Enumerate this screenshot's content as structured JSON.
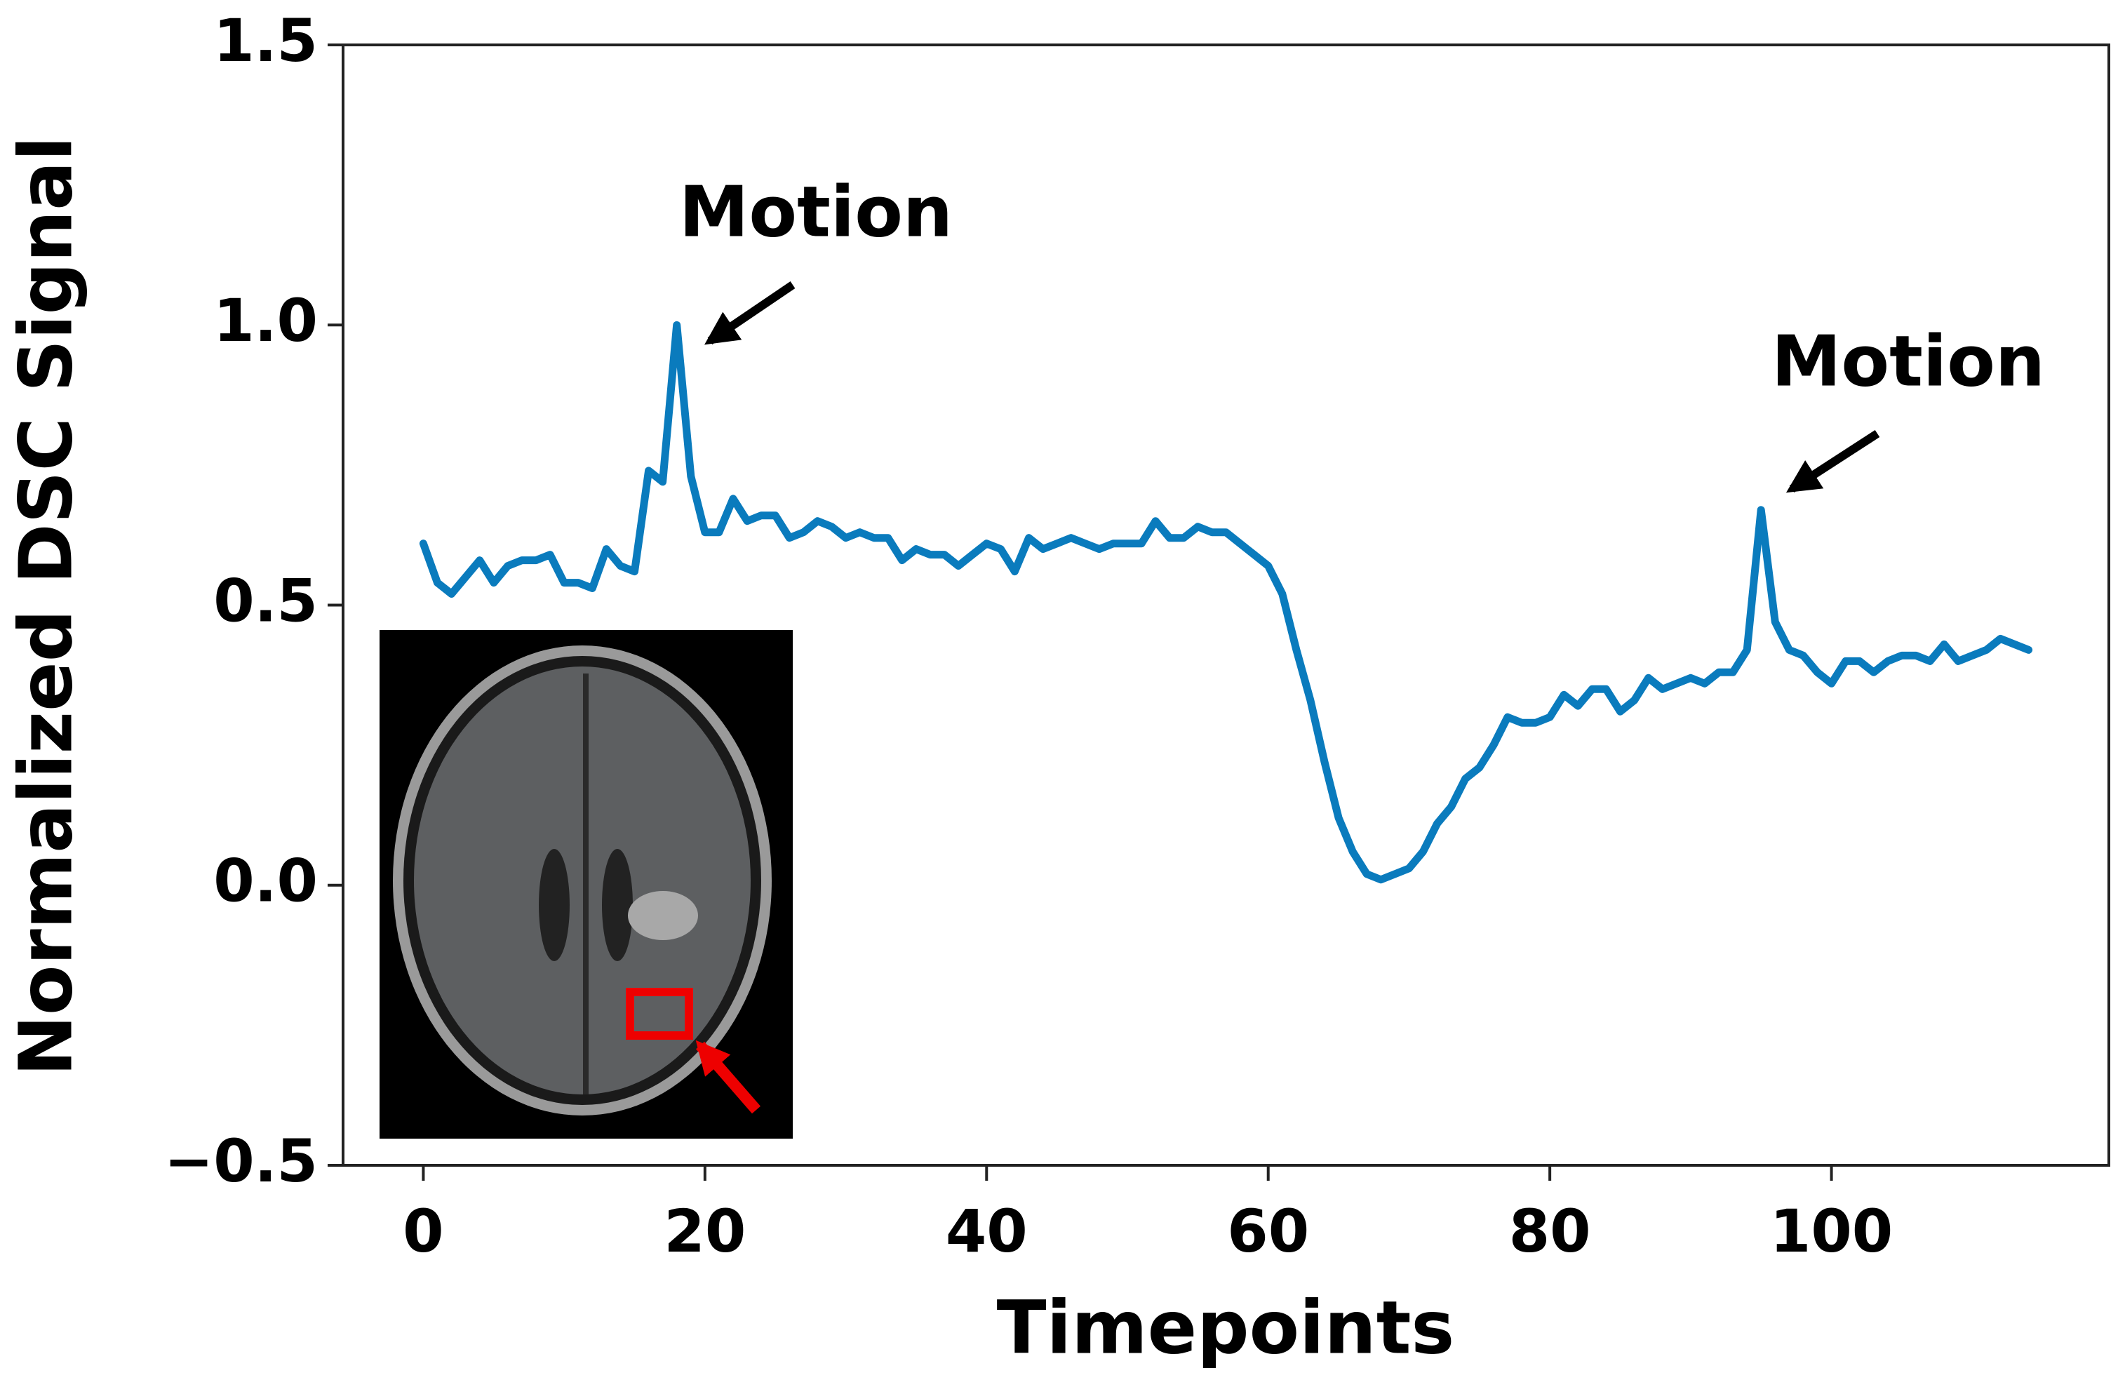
{
  "chart_data": {
    "type": "line",
    "x_label": "Timepoints",
    "y_label": "Normalized DSC Signal",
    "annotations": [
      {
        "text": "Motion"
      },
      {
        "text": "Motion"
      }
    ],
    "x": [
      0,
      1,
      2,
      3,
      4,
      5,
      6,
      7,
      8,
      9,
      10,
      11,
      12,
      13,
      14,
      15,
      16,
      17,
      18,
      19,
      20,
      21,
      22,
      23,
      24,
      25,
      26,
      27,
      28,
      29,
      30,
      31,
      32,
      33,
      34,
      35,
      36,
      37,
      38,
      39,
      40,
      41,
      42,
      43,
      44,
      45,
      46,
      47,
      48,
      49,
      50,
      51,
      52,
      53,
      54,
      55,
      56,
      57,
      58,
      59,
      60,
      61,
      62,
      63,
      64,
      65,
      66,
      67,
      68,
      69,
      70,
      71,
      72,
      73,
      74,
      75,
      76,
      77,
      78,
      79,
      80,
      81,
      82,
      83,
      84,
      85,
      86,
      87,
      88,
      89,
      90,
      91,
      92,
      93,
      94,
      95,
      96,
      97,
      98,
      99,
      100,
      101,
      102,
      103,
      104,
      105,
      106,
      107,
      108,
      109,
      110,
      111,
      112,
      113,
      114
    ],
    "series": [
      {
        "color": "#0a7bbd",
        "values": [
          0.61,
          0.54,
          0.52,
          0.55,
          0.58,
          0.54,
          0.57,
          0.58,
          0.58,
          0.59,
          0.54,
          0.54,
          0.53,
          0.6,
          0.57,
          0.56,
          0.74,
          0.72,
          1.0,
          0.73,
          0.63,
          0.63,
          0.69,
          0.65,
          0.66,
          0.66,
          0.62,
          0.63,
          0.65,
          0.64,
          0.62,
          0.63,
          0.62,
          0.62,
          0.58,
          0.6,
          0.59,
          0.59,
          0.57,
          0.59,
          0.61,
          0.6,
          0.56,
          0.62,
          0.6,
          0.61,
          0.62,
          0.61,
          0.6,
          0.61,
          0.61,
          0.61,
          0.65,
          0.62,
          0.62,
          0.64,
          0.63,
          0.63,
          0.61,
          0.59,
          0.57,
          0.52,
          0.42,
          0.33,
          0.22,
          0.12,
          0.06,
          0.02,
          0.01,
          0.02,
          0.03,
          0.06,
          0.11,
          0.14,
          0.19,
          0.21,
          0.25,
          0.3,
          0.29,
          0.29,
          0.3,
          0.34,
          0.32,
          0.35,
          0.35,
          0.31,
          0.33,
          0.37,
          0.35,
          0.36,
          0.37,
          0.36,
          0.38,
          0.38,
          0.42,
          0.67,
          0.47,
          0.42,
          0.41,
          0.38,
          0.36,
          0.4,
          0.4,
          0.38,
          0.4,
          0.41,
          0.41,
          0.4,
          0.43,
          0.4,
          0.41,
          0.42,
          0.44,
          0.43,
          0.42
        ]
      }
    ],
    "xlim": [
      -5.7,
      119.7
    ],
    "ylim": [
      -0.5,
      1.5
    ],
    "xticks": [
      0,
      20,
      40,
      60,
      80,
      100
    ],
    "yticks": [
      {
        "value": -0.5,
        "label": "−0.5"
      },
      {
        "value": 0.0,
        "label": "0.0"
      },
      0.5,
      {
        "value": 1.0,
        "label": "1.0"
      },
      1.5
    ]
  }
}
